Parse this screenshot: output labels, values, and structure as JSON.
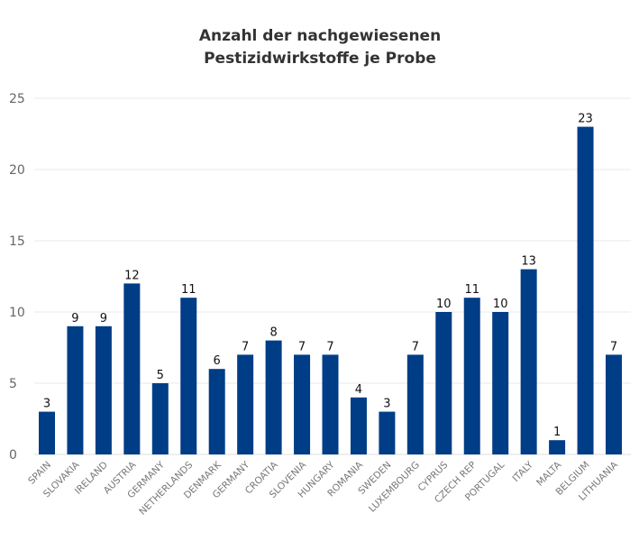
{
  "chart_data": {
    "type": "bar",
    "title": [
      "Anzahl der nachgewiesenen",
      "Pestizidwirkstoffe je Probe"
    ],
    "categories": [
      "SPAIN",
      "SLOVAKIA",
      "IRELAND",
      "AUSTRIA",
      "GERMANY",
      "NETHERLANDS",
      "DENMARK",
      "GERMANY",
      "CROATIA",
      "SLOVENIA",
      "HUNGARY",
      "ROMANIA",
      "SWEDEN",
      "LUXEMBOURG",
      "CYPRUS",
      "CZECH REP",
      "PORTUGAL",
      "ITALY",
      "MALTA",
      "BELGIUM",
      "LITHUANIA"
    ],
    "values": [
      3,
      9,
      9,
      12,
      5,
      11,
      6,
      7,
      8,
      7,
      7,
      4,
      3,
      7,
      10,
      11,
      10,
      13,
      1,
      23,
      7
    ],
    "ylim": [
      0,
      25
    ],
    "yticks": [
      0,
      5,
      10,
      15,
      20,
      25
    ],
    "grid": true,
    "data_labels": true,
    "bar_color": "#003d87"
  }
}
